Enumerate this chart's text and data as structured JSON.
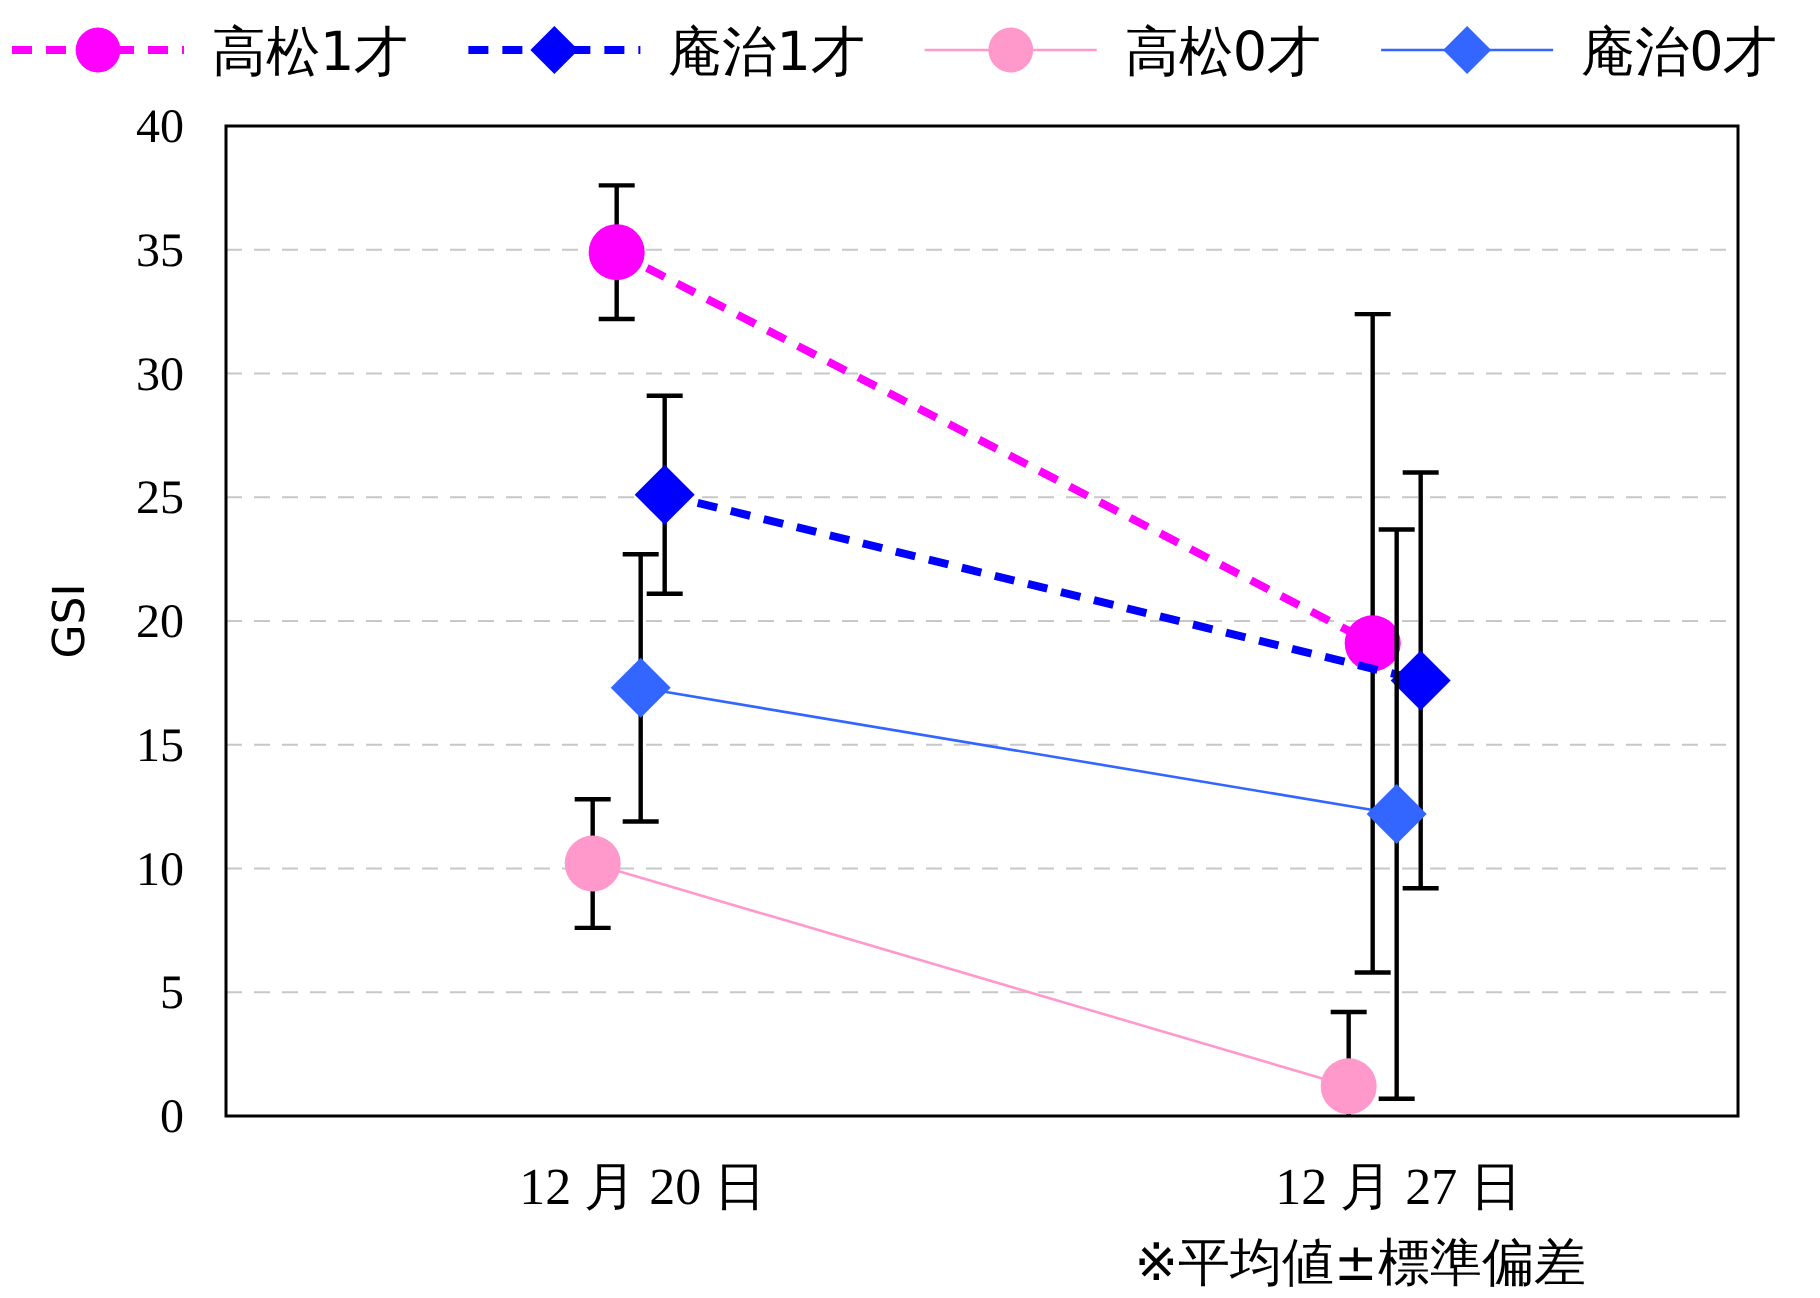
{
  "chart_data": {
    "type": "line",
    "ylabel": "GSI",
    "categories": [
      "12 月 20 日",
      "12 月 27 日"
    ],
    "series": [
      {
        "name": "高松1才",
        "color": "#ff00ff",
        "marker": "circle",
        "line_style": "dashed",
        "values": [
          34.9,
          19.1
        ],
        "errors": [
          2.7,
          13.3
        ]
      },
      {
        "name": "庵治1才",
        "color": "#0000ff",
        "marker": "diamond",
        "line_style": "dashed",
        "values": [
          25.1,
          17.6
        ],
        "errors": [
          4.0,
          8.4
        ]
      },
      {
        "name": "高松0才",
        "color": "#ff99cc",
        "marker": "circle",
        "line_style": "solid",
        "values": [
          10.2,
          1.2
        ],
        "errors": [
          2.6,
          [
            0,
            4.2
          ]
        ]
      },
      {
        "name": "庵治0才",
        "color": "#3366ff",
        "marker": "diamond",
        "line_style": "solid",
        "values": [
          17.3,
          12.2
        ],
        "errors": [
          5.4,
          11.5
        ]
      }
    ],
    "ylim": [
      0,
      40
    ],
    "yticks": [
      0,
      5,
      10,
      15,
      20,
      25,
      30,
      35,
      40
    ],
    "grid": "y",
    "legend": "top",
    "annotations": [
      "※平均値±標準偏差"
    ]
  }
}
